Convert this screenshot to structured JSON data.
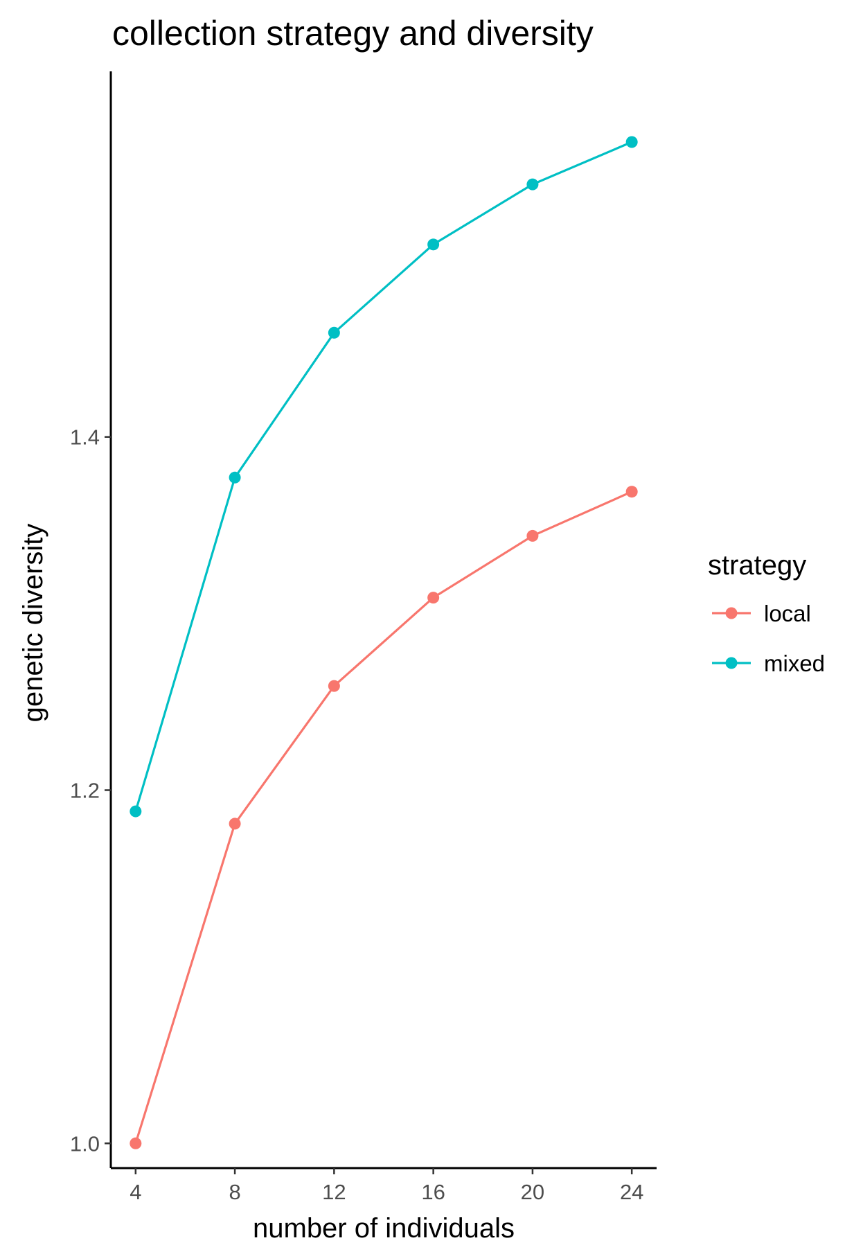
{
  "chart_data": {
    "type": "line",
    "title": "collection strategy and diversity",
    "xlabel": "number of individuals",
    "ylabel": "genetic diversity",
    "x": [
      4,
      8,
      12,
      16,
      20,
      24
    ],
    "xlim": [
      3,
      25
    ],
    "ylim": [
      0.986,
      1.607
    ],
    "xticks": [
      4,
      8,
      12,
      16,
      20,
      24
    ],
    "xtick_labels": [
      "4",
      "8",
      "12",
      "16",
      "20",
      "24"
    ],
    "yticks": [
      1.0,
      1.2,
      1.4
    ],
    "ytick_labels": [
      "1.0",
      "1.2",
      "1.4"
    ],
    "grid": false,
    "legend": {
      "title": "strategy",
      "position": "right"
    },
    "series": [
      {
        "name": "local",
        "color": "#F8766D",
        "values": [
          1.0,
          1.181,
          1.259,
          1.309,
          1.344,
          1.369
        ]
      },
      {
        "name": "mixed",
        "color": "#00BFC4",
        "values": [
          1.188,
          1.377,
          1.459,
          1.509,
          1.543,
          1.567
        ]
      }
    ]
  }
}
